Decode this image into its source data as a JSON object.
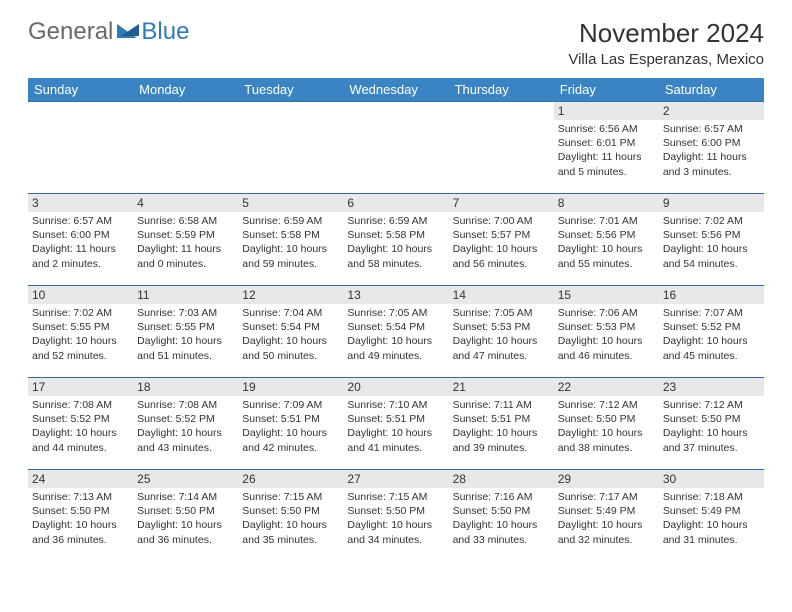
{
  "logo": {
    "part1": "General",
    "part2": "Blue"
  },
  "title": "November 2024",
  "location": "Villa Las Esperanzas, Mexico",
  "colors": {
    "header_bg": "#3a84c4",
    "row_border": "#2f6fa6",
    "daynum_bg": "#e8e8e8",
    "logo_gray": "#6a6a6a",
    "logo_blue": "#2f7ab8"
  },
  "weekdays": [
    "Sunday",
    "Monday",
    "Tuesday",
    "Wednesday",
    "Thursday",
    "Friday",
    "Saturday"
  ],
  "weeks": [
    [
      null,
      null,
      null,
      null,
      null,
      {
        "d": "1",
        "sr": "Sunrise: 6:56 AM",
        "ss": "Sunset: 6:01 PM",
        "dl1": "Daylight: 11 hours",
        "dl2": "and 5 minutes."
      },
      {
        "d": "2",
        "sr": "Sunrise: 6:57 AM",
        "ss": "Sunset: 6:00 PM",
        "dl1": "Daylight: 11 hours",
        "dl2": "and 3 minutes."
      }
    ],
    [
      {
        "d": "3",
        "sr": "Sunrise: 6:57 AM",
        "ss": "Sunset: 6:00 PM",
        "dl1": "Daylight: 11 hours",
        "dl2": "and 2 minutes."
      },
      {
        "d": "4",
        "sr": "Sunrise: 6:58 AM",
        "ss": "Sunset: 5:59 PM",
        "dl1": "Daylight: 11 hours",
        "dl2": "and 0 minutes."
      },
      {
        "d": "5",
        "sr": "Sunrise: 6:59 AM",
        "ss": "Sunset: 5:58 PM",
        "dl1": "Daylight: 10 hours",
        "dl2": "and 59 minutes."
      },
      {
        "d": "6",
        "sr": "Sunrise: 6:59 AM",
        "ss": "Sunset: 5:58 PM",
        "dl1": "Daylight: 10 hours",
        "dl2": "and 58 minutes."
      },
      {
        "d": "7",
        "sr": "Sunrise: 7:00 AM",
        "ss": "Sunset: 5:57 PM",
        "dl1": "Daylight: 10 hours",
        "dl2": "and 56 minutes."
      },
      {
        "d": "8",
        "sr": "Sunrise: 7:01 AM",
        "ss": "Sunset: 5:56 PM",
        "dl1": "Daylight: 10 hours",
        "dl2": "and 55 minutes."
      },
      {
        "d": "9",
        "sr": "Sunrise: 7:02 AM",
        "ss": "Sunset: 5:56 PM",
        "dl1": "Daylight: 10 hours",
        "dl2": "and 54 minutes."
      }
    ],
    [
      {
        "d": "10",
        "sr": "Sunrise: 7:02 AM",
        "ss": "Sunset: 5:55 PM",
        "dl1": "Daylight: 10 hours",
        "dl2": "and 52 minutes."
      },
      {
        "d": "11",
        "sr": "Sunrise: 7:03 AM",
        "ss": "Sunset: 5:55 PM",
        "dl1": "Daylight: 10 hours",
        "dl2": "and 51 minutes."
      },
      {
        "d": "12",
        "sr": "Sunrise: 7:04 AM",
        "ss": "Sunset: 5:54 PM",
        "dl1": "Daylight: 10 hours",
        "dl2": "and 50 minutes."
      },
      {
        "d": "13",
        "sr": "Sunrise: 7:05 AM",
        "ss": "Sunset: 5:54 PM",
        "dl1": "Daylight: 10 hours",
        "dl2": "and 49 minutes."
      },
      {
        "d": "14",
        "sr": "Sunrise: 7:05 AM",
        "ss": "Sunset: 5:53 PM",
        "dl1": "Daylight: 10 hours",
        "dl2": "and 47 minutes."
      },
      {
        "d": "15",
        "sr": "Sunrise: 7:06 AM",
        "ss": "Sunset: 5:53 PM",
        "dl1": "Daylight: 10 hours",
        "dl2": "and 46 minutes."
      },
      {
        "d": "16",
        "sr": "Sunrise: 7:07 AM",
        "ss": "Sunset: 5:52 PM",
        "dl1": "Daylight: 10 hours",
        "dl2": "and 45 minutes."
      }
    ],
    [
      {
        "d": "17",
        "sr": "Sunrise: 7:08 AM",
        "ss": "Sunset: 5:52 PM",
        "dl1": "Daylight: 10 hours",
        "dl2": "and 44 minutes."
      },
      {
        "d": "18",
        "sr": "Sunrise: 7:08 AM",
        "ss": "Sunset: 5:52 PM",
        "dl1": "Daylight: 10 hours",
        "dl2": "and 43 minutes."
      },
      {
        "d": "19",
        "sr": "Sunrise: 7:09 AM",
        "ss": "Sunset: 5:51 PM",
        "dl1": "Daylight: 10 hours",
        "dl2": "and 42 minutes."
      },
      {
        "d": "20",
        "sr": "Sunrise: 7:10 AM",
        "ss": "Sunset: 5:51 PM",
        "dl1": "Daylight: 10 hours",
        "dl2": "and 41 minutes."
      },
      {
        "d": "21",
        "sr": "Sunrise: 7:11 AM",
        "ss": "Sunset: 5:51 PM",
        "dl1": "Daylight: 10 hours",
        "dl2": "and 39 minutes."
      },
      {
        "d": "22",
        "sr": "Sunrise: 7:12 AM",
        "ss": "Sunset: 5:50 PM",
        "dl1": "Daylight: 10 hours",
        "dl2": "and 38 minutes."
      },
      {
        "d": "23",
        "sr": "Sunrise: 7:12 AM",
        "ss": "Sunset: 5:50 PM",
        "dl1": "Daylight: 10 hours",
        "dl2": "and 37 minutes."
      }
    ],
    [
      {
        "d": "24",
        "sr": "Sunrise: 7:13 AM",
        "ss": "Sunset: 5:50 PM",
        "dl1": "Daylight: 10 hours",
        "dl2": "and 36 minutes."
      },
      {
        "d": "25",
        "sr": "Sunrise: 7:14 AM",
        "ss": "Sunset: 5:50 PM",
        "dl1": "Daylight: 10 hours",
        "dl2": "and 36 minutes."
      },
      {
        "d": "26",
        "sr": "Sunrise: 7:15 AM",
        "ss": "Sunset: 5:50 PM",
        "dl1": "Daylight: 10 hours",
        "dl2": "and 35 minutes."
      },
      {
        "d": "27",
        "sr": "Sunrise: 7:15 AM",
        "ss": "Sunset: 5:50 PM",
        "dl1": "Daylight: 10 hours",
        "dl2": "and 34 minutes."
      },
      {
        "d": "28",
        "sr": "Sunrise: 7:16 AM",
        "ss": "Sunset: 5:50 PM",
        "dl1": "Daylight: 10 hours",
        "dl2": "and 33 minutes."
      },
      {
        "d": "29",
        "sr": "Sunrise: 7:17 AM",
        "ss": "Sunset: 5:49 PM",
        "dl1": "Daylight: 10 hours",
        "dl2": "and 32 minutes."
      },
      {
        "d": "30",
        "sr": "Sunrise: 7:18 AM",
        "ss": "Sunset: 5:49 PM",
        "dl1": "Daylight: 10 hours",
        "dl2": "and 31 minutes."
      }
    ]
  ]
}
